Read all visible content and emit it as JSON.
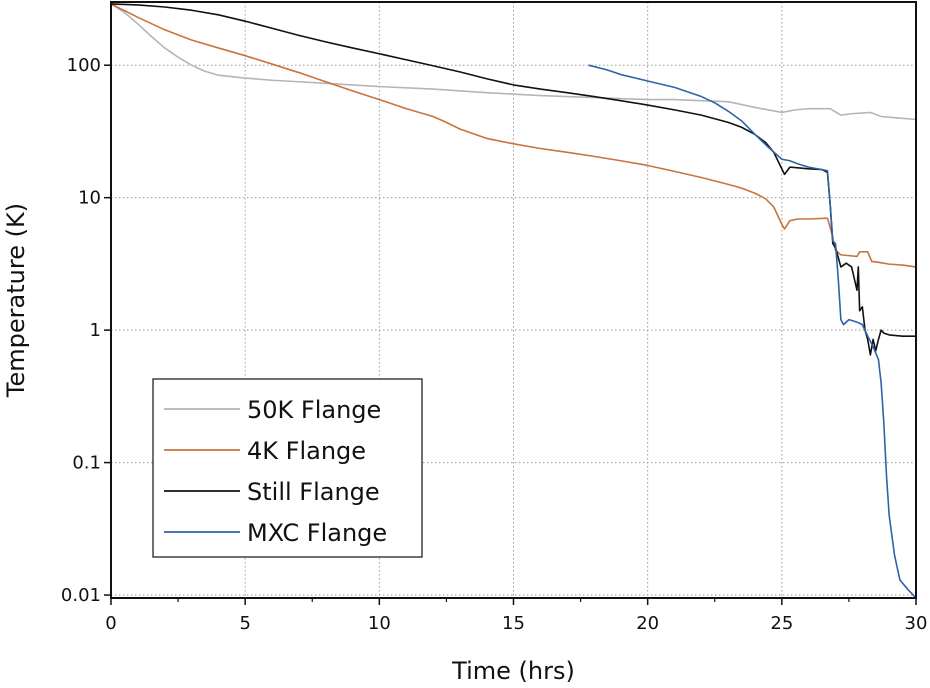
{
  "chart_data": {
    "type": "line",
    "xlabel": "Time (hrs)",
    "ylabel": "Temperature (K)",
    "xlim": [
      0,
      30
    ],
    "ylim": [
      0.0095,
      300
    ],
    "yscale": "log",
    "x_ticks": [
      0,
      5,
      10,
      15,
      20,
      25,
      30
    ],
    "x_tick_labels": [
      "0",
      "5",
      "10",
      "15",
      "20",
      "25",
      "30"
    ],
    "y_ticks": [
      0.01,
      0.1,
      1,
      10,
      100
    ],
    "y_tick_labels": [
      "0.01",
      "0.1",
      "1",
      "10",
      "100"
    ],
    "grid": true,
    "legend_position": "bottom-left",
    "series": [
      {
        "name": "50K Flange",
        "color": "#b5b5b5",
        "points": [
          [
            0,
            290
          ],
          [
            0.5,
            250
          ],
          [
            1,
            205
          ],
          [
            1.5,
            165
          ],
          [
            2,
            135
          ],
          [
            2.5,
            115
          ],
          [
            3,
            100
          ],
          [
            3.5,
            90
          ],
          [
            4,
            84
          ],
          [
            5,
            80
          ],
          [
            6,
            77
          ],
          [
            7,
            75
          ],
          [
            8,
            73
          ],
          [
            10,
            69
          ],
          [
            12,
            66
          ],
          [
            14,
            62
          ],
          [
            16,
            59
          ],
          [
            18,
            57
          ],
          [
            20,
            55
          ],
          [
            21,
            55
          ],
          [
            22,
            54
          ],
          [
            23,
            53
          ],
          [
            24,
            48
          ],
          [
            25,
            44
          ],
          [
            25.5,
            46
          ],
          [
            26,
            47
          ],
          [
            26.8,
            47
          ],
          [
            27.2,
            42
          ],
          [
            27.6,
            43
          ],
          [
            28.3,
            44
          ],
          [
            28.7,
            41
          ],
          [
            29.3,
            40
          ],
          [
            30,
            39
          ]
        ]
      },
      {
        "name": "4K Flange",
        "color": "#c8743c",
        "points": [
          [
            0,
            290
          ],
          [
            1,
            230
          ],
          [
            2,
            185
          ],
          [
            3,
            155
          ],
          [
            4,
            135
          ],
          [
            5,
            118
          ],
          [
            6,
            102
          ],
          [
            7,
            88
          ],
          [
            8,
            75
          ],
          [
            9,
            64
          ],
          [
            10,
            55
          ],
          [
            11,
            47
          ],
          [
            12,
            41
          ],
          [
            12.5,
            37
          ],
          [
            13,
            33
          ],
          [
            14,
            28
          ],
          [
            15,
            25.5
          ],
          [
            16,
            23.5
          ],
          [
            17,
            22
          ],
          [
            18,
            20.5
          ],
          [
            19,
            19
          ],
          [
            20,
            17.5
          ],
          [
            21,
            15.8
          ],
          [
            22,
            14.2
          ],
          [
            23,
            12.6
          ],
          [
            23.5,
            11.8
          ],
          [
            24,
            10.8
          ],
          [
            24.4,
            9.8
          ],
          [
            24.7,
            8.5
          ],
          [
            25,
            6.3
          ],
          [
            25.1,
            5.8
          ],
          [
            25.3,
            6.7
          ],
          [
            25.6,
            6.9
          ],
          [
            26,
            6.9
          ],
          [
            26.7,
            7.0
          ],
          [
            26.85,
            5.5
          ],
          [
            27,
            4.0
          ],
          [
            27.2,
            3.7
          ],
          [
            27.5,
            3.65
          ],
          [
            27.8,
            3.6
          ],
          [
            27.9,
            3.9
          ],
          [
            28.2,
            3.9
          ],
          [
            28.35,
            3.3
          ],
          [
            28.6,
            3.25
          ],
          [
            29,
            3.15
          ],
          [
            29.5,
            3.1
          ],
          [
            30,
            3.0
          ]
        ]
      },
      {
        "name": "Still Flange",
        "color": "#111111",
        "points": [
          [
            0,
            290
          ],
          [
            1,
            285
          ],
          [
            2,
            275
          ],
          [
            3,
            260
          ],
          [
            4,
            240
          ],
          [
            5,
            215
          ],
          [
            6,
            190
          ],
          [
            7,
            168
          ],
          [
            8,
            150
          ],
          [
            9,
            135
          ],
          [
            10,
            122
          ],
          [
            11,
            110
          ],
          [
            12,
            99
          ],
          [
            13,
            89
          ],
          [
            14,
            79
          ],
          [
            15,
            71
          ],
          [
            16,
            66
          ],
          [
            17,
            62
          ],
          [
            18,
            58
          ],
          [
            19,
            54
          ],
          [
            20,
            50
          ],
          [
            21,
            46
          ],
          [
            22,
            42
          ],
          [
            23,
            37
          ],
          [
            23.5,
            34
          ],
          [
            24,
            30
          ],
          [
            24.4,
            26
          ],
          [
            24.7,
            22
          ],
          [
            25,
            16.5
          ],
          [
            25.1,
            15
          ],
          [
            25.3,
            17
          ],
          [
            25.6,
            16.8
          ],
          [
            26,
            16.5
          ],
          [
            26.5,
            16.3
          ],
          [
            26.7,
            15.5
          ],
          [
            26.8,
            9
          ],
          [
            26.9,
            4.5
          ],
          [
            27,
            4.2
          ],
          [
            27.2,
            3.0
          ],
          [
            27.4,
            3.2
          ],
          [
            27.6,
            3.0
          ],
          [
            27.8,
            2.0
          ],
          [
            27.85,
            3.0
          ],
          [
            27.9,
            1.4
          ],
          [
            28,
            1.5
          ],
          [
            28.1,
            1.0
          ],
          [
            28.2,
            0.85
          ],
          [
            28.3,
            0.65
          ],
          [
            28.4,
            0.85
          ],
          [
            28.5,
            0.7
          ],
          [
            28.6,
            0.85
          ],
          [
            28.7,
            1.0
          ],
          [
            28.8,
            0.95
          ],
          [
            29,
            0.92
          ],
          [
            29.5,
            0.9
          ],
          [
            30,
            0.9
          ]
        ]
      },
      {
        "name": "MXC Flange",
        "color": "#2f62a8",
        "points": [
          [
            17.8,
            100
          ],
          [
            18.5,
            92
          ],
          [
            19,
            85
          ],
          [
            20,
            76
          ],
          [
            21,
            68
          ],
          [
            22,
            58
          ],
          [
            22.5,
            52
          ],
          [
            23,
            45
          ],
          [
            23.5,
            38
          ],
          [
            24,
            30
          ],
          [
            24.5,
            24
          ],
          [
            25,
            19.5
          ],
          [
            25.3,
            19
          ],
          [
            25.6,
            18
          ],
          [
            26,
            17
          ],
          [
            26.7,
            16
          ],
          [
            26.8,
            9
          ],
          [
            26.9,
            4.7
          ],
          [
            27,
            4.5
          ],
          [
            27.1,
            2.5
          ],
          [
            27.2,
            1.2
          ],
          [
            27.3,
            1.1
          ],
          [
            27.5,
            1.2
          ],
          [
            27.8,
            1.15
          ],
          [
            28,
            1.1
          ],
          [
            28.2,
            0.9
          ],
          [
            28.4,
            0.75
          ],
          [
            28.6,
            0.6
          ],
          [
            28.7,
            0.4
          ],
          [
            28.8,
            0.2
          ],
          [
            28.9,
            0.08
          ],
          [
            29,
            0.04
          ],
          [
            29.2,
            0.02
          ],
          [
            29.4,
            0.013
          ],
          [
            29.7,
            0.011
          ],
          [
            30,
            0.0095
          ]
        ]
      }
    ]
  }
}
